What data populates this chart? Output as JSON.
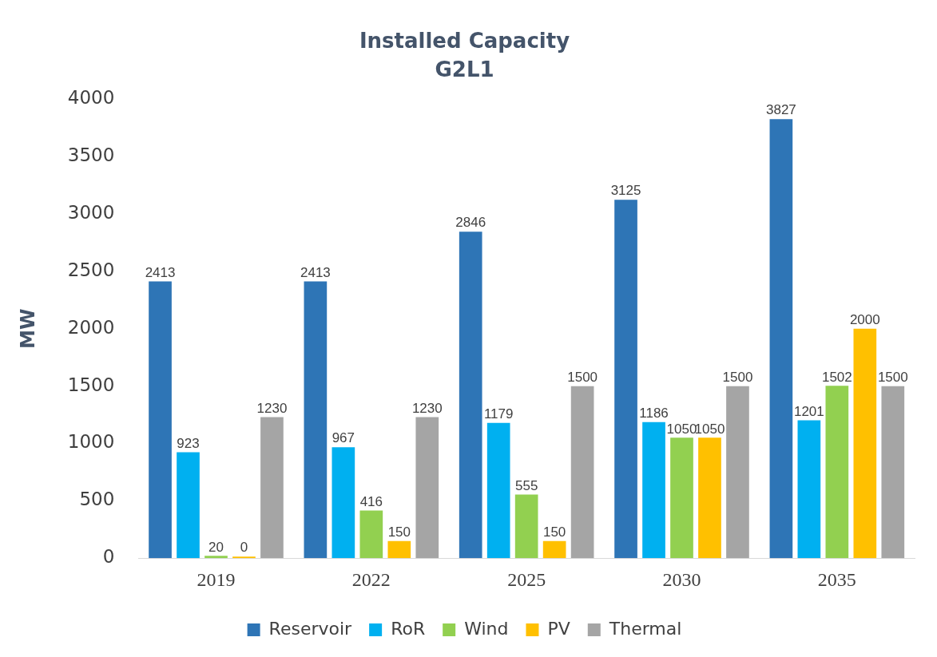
{
  "chart_data": {
    "type": "bar",
    "title": "Installed Capacity",
    "subtitle": "G2L1",
    "ylabel": "MW",
    "categories": [
      "2019",
      "2022",
      "2025",
      "2030",
      "2035"
    ],
    "series": [
      {
        "name": "Reservoir",
        "color": "#2e75b6",
        "values": [
          2413,
          2413,
          2846,
          3125,
          3827
        ]
      },
      {
        "name": "RoR",
        "color": "#00b0f0",
        "values": [
          923,
          967,
          1179,
          1186,
          1201
        ]
      },
      {
        "name": "Wind",
        "color": "#92d050",
        "values": [
          20,
          416,
          555,
          1050,
          1502
        ]
      },
      {
        "name": "PV",
        "color": "#ffc000",
        "values": [
          0,
          150,
          150,
          1050,
          2000
        ]
      },
      {
        "name": "Thermal",
        "color": "#a5a5a5",
        "values": [
          1230,
          1230,
          1500,
          1500,
          1500
        ]
      }
    ],
    "ylim": [
      0,
      4000
    ],
    "yticks": [
      0,
      500,
      1000,
      1500,
      2000,
      2500,
      3000,
      3500,
      4000
    ],
    "grid": false,
    "legend": "bottom",
    "data_labels": true
  }
}
